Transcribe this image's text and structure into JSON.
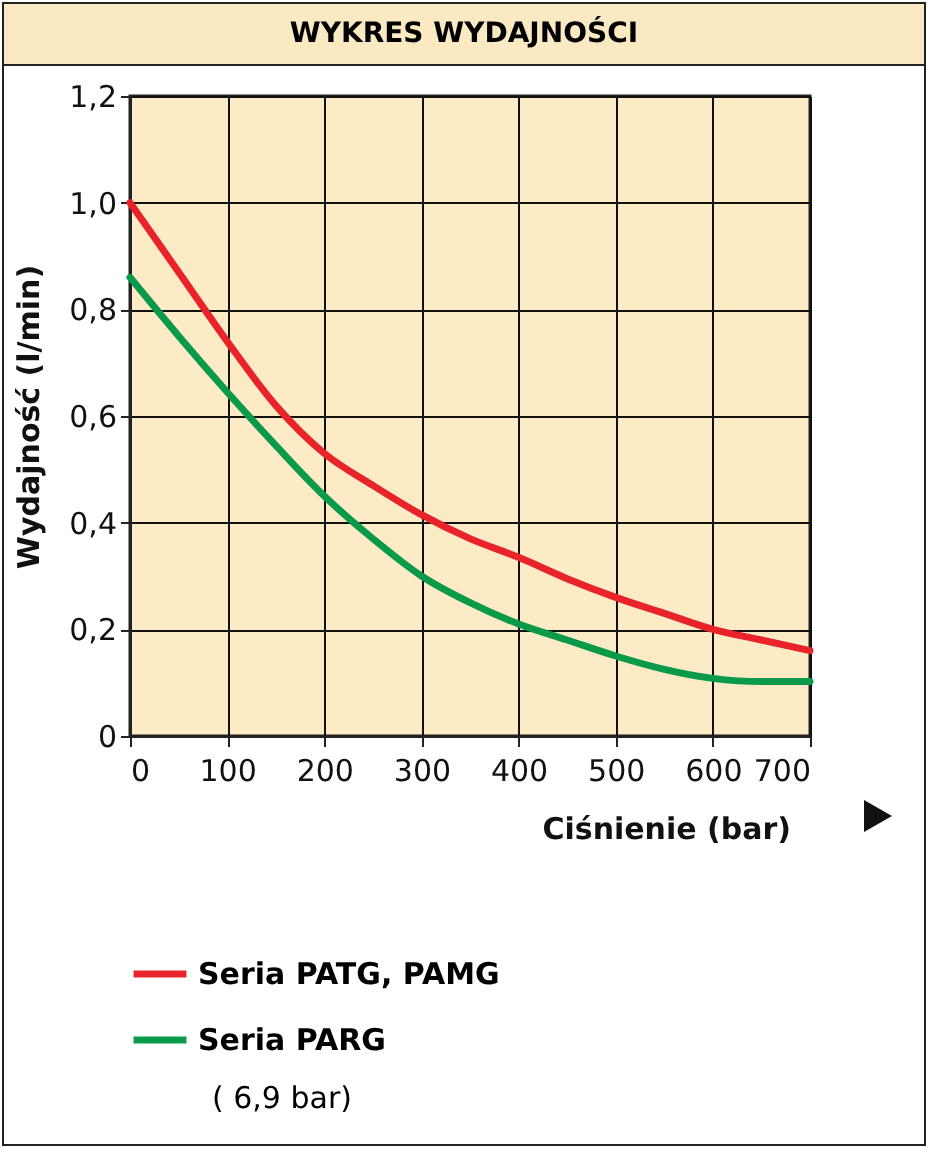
{
  "chart_data": {
    "type": "line",
    "title": "WYKRES WYDAJNOŚCI",
    "xlabel": "Ciśnienie (bar)",
    "ylabel": "Wydajność (l/min)",
    "x": [
      0,
      50,
      100,
      150,
      200,
      250,
      300,
      350,
      400,
      450,
      500,
      550,
      600,
      650,
      700
    ],
    "series": [
      {
        "name": "Seria PATG, PAMG",
        "color": "#e8232a",
        "values": [
          1.0,
          0.87,
          0.74,
          0.62,
          0.53,
          0.47,
          0.415,
          0.37,
          0.335,
          0.295,
          0.26,
          0.23,
          0.2,
          0.18,
          0.16
        ]
      },
      {
        "name": "Seria PARG",
        "color": "#0a9a4a",
        "values": [
          0.86,
          0.75,
          0.645,
          0.545,
          0.45,
          0.37,
          0.3,
          0.25,
          0.21,
          0.18,
          0.15,
          0.125,
          0.108,
          0.102,
          0.102
        ]
      }
    ],
    "xlim": [
      0,
      700
    ],
    "xticks": [
      0,
      100,
      200,
      300,
      400,
      500,
      600,
      700
    ],
    "ylim": [
      0,
      1.2
    ],
    "yticks": [
      0,
      {
        "value": 0.2,
        "label": "0,2"
      },
      {
        "value": 0.4,
        "label": "0,4"
      },
      {
        "value": 0.6,
        "label": "0,6"
      },
      {
        "value": 0.8,
        "label": "0,8"
      },
      {
        "value": 1.0,
        "label": "1,0"
      },
      {
        "value": 1.2,
        "label": "1,2"
      }
    ],
    "grid": true,
    "legend": "bottom",
    "marker": "none",
    "line_style": "solid",
    "annotations": [
      "( 6,9 bar)"
    ]
  }
}
